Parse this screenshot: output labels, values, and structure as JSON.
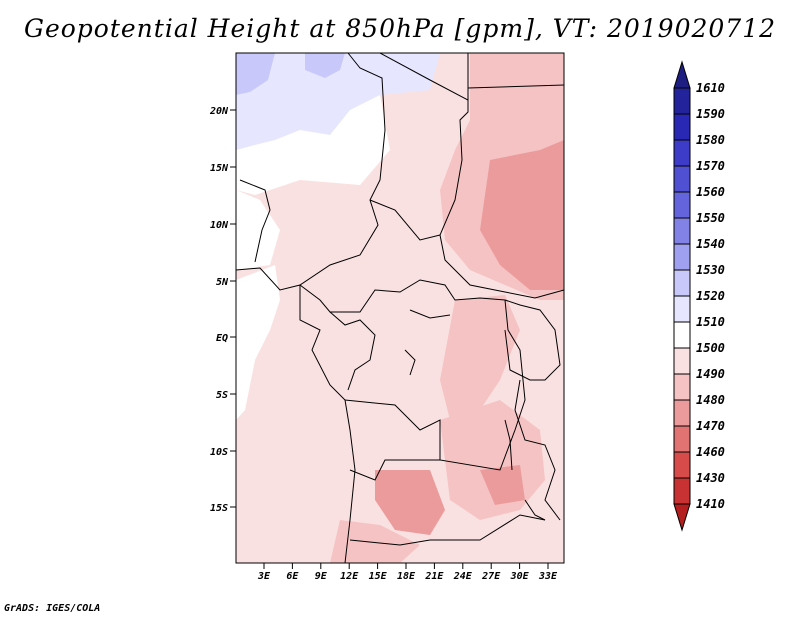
{
  "title": "Geopotential Height at 850hPa [gpm], VT: 2019020712",
  "credit": "GrADS: IGES/COLA",
  "map": {
    "region": "Central Africa",
    "lat_labels": [
      "20N",
      "15N",
      "10N",
      "5N",
      "EQ",
      "5S",
      "10S",
      "15S"
    ],
    "lon_labels": [
      "3E",
      "6E",
      "9E",
      "12E",
      "15E",
      "18E",
      "21E",
      "24E",
      "27E",
      "30E",
      "33E"
    ]
  },
  "colorbar": {
    "levels": [
      "1610",
      "1590",
      "1580",
      "1570",
      "1560",
      "1550",
      "1540",
      "1530",
      "1520",
      "1510",
      "1500",
      "1490",
      "1480",
      "1470",
      "1460",
      "1430",
      "1410"
    ],
    "colors": [
      "#1e1e82",
      "#23239b",
      "#2828b4",
      "#3c3cc8",
      "#5050d2",
      "#6464dc",
      "#8282e6",
      "#a0a0f0",
      "#c8c8fa",
      "#e6e6ff",
      "#ffffff",
      "#fae1e1",
      "#f5c3c3",
      "#eb9b9b",
      "#e17373",
      "#d74b4b",
      "#c83232",
      "#b41e1e"
    ]
  }
}
